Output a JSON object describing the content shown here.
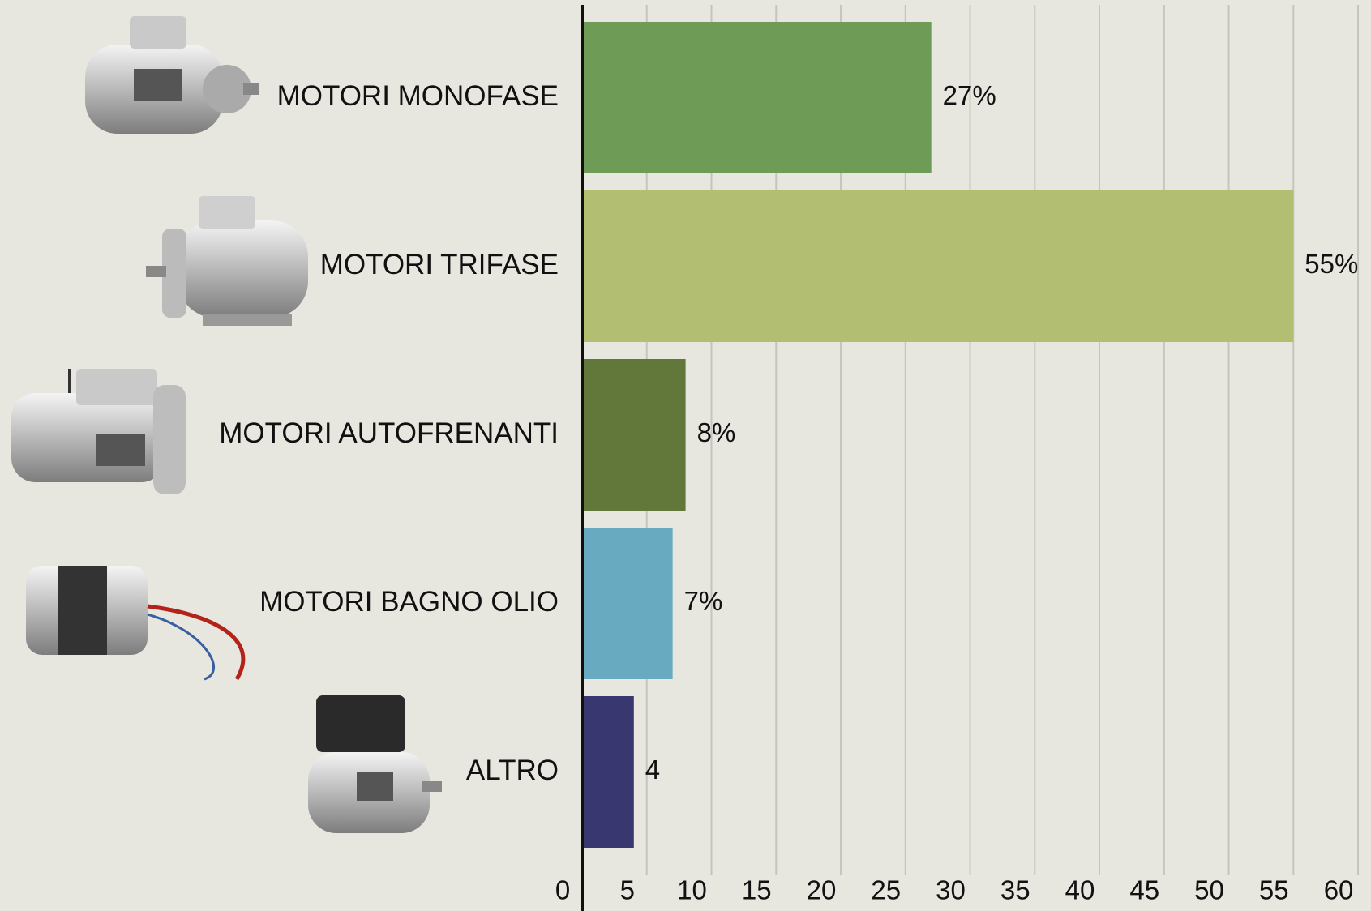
{
  "chart_data": {
    "type": "hbar",
    "categories": [
      "MOTORI MONOFASE",
      "MOTORI TRIFASE",
      "MOTORI AUTOFRENANTI",
      "MOTORI BAGNO OLIO",
      "ALTRO"
    ],
    "values": [
      27,
      55,
      8,
      7,
      4
    ],
    "value_labels": [
      "27%",
      "55%",
      "8%",
      "7%",
      "4"
    ],
    "colors": [
      "#6e9b55",
      "#b2bf72",
      "#62783b",
      "#68abc0",
      "#393770"
    ],
    "xlim": [
      0,
      61
    ],
    "xticks": [
      0,
      5,
      10,
      15,
      20,
      25,
      30,
      35,
      40,
      45,
      50,
      55,
      60
    ],
    "grid": true
  }
}
